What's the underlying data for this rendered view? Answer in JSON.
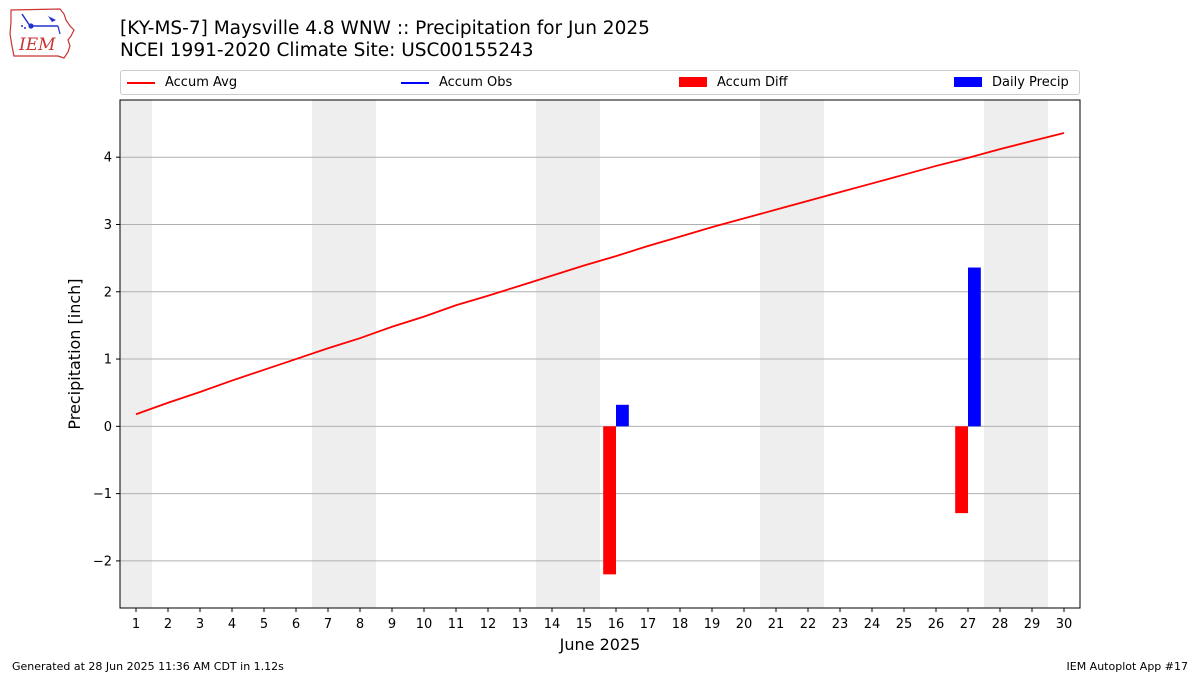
{
  "header": {
    "title_line1": "[KY-MS-7] Maysville 4.8 WNW :: Precipitation for Jun 2025",
    "title_line2": "NCEI 1991-2020 Climate Site: USC00155243",
    "logo_text": "IEM",
    "logo_icon": "iowa-state-outline-weather-icon"
  },
  "footer": {
    "left": "Generated at 28 Jun 2025 11:36 AM CDT in 1.12s",
    "right": "IEM Autoplot App #17"
  },
  "legend": {
    "placement": "top, above plot, horizontal",
    "items": [
      {
        "label": "Accum Avg",
        "kind": "line",
        "color": "#ff0000"
      },
      {
        "label": "Accum Obs",
        "kind": "line",
        "color": "#0000ff"
      },
      {
        "label": "Accum Diff",
        "kind": "patch",
        "color": "#ff0000"
      },
      {
        "label": "Daily Precip",
        "kind": "patch",
        "color": "#0000ff"
      }
    ]
  },
  "chart_data": {
    "type": "bar",
    "xlabel": "June 2025",
    "ylabel": "Precipitation [inch]",
    "xlim": [
      0.5,
      30.5
    ],
    "ylim": [
      -2.7,
      4.85
    ],
    "yticks": [
      -2,
      -1,
      0,
      1,
      2,
      3,
      4
    ],
    "ytick_labels": [
      "−2",
      "−1",
      "0",
      "1",
      "2",
      "3",
      "4"
    ],
    "xticks": [
      1,
      2,
      3,
      4,
      5,
      6,
      7,
      8,
      9,
      10,
      11,
      12,
      13,
      14,
      15,
      16,
      17,
      18,
      19,
      20,
      21,
      22,
      23,
      24,
      25,
      26,
      27,
      28,
      29,
      30
    ],
    "grid": "horizontal",
    "weekend_shading": {
      "color": "#eeeeee",
      "ranges": [
        [
          0.5,
          1.5
        ],
        [
          6.5,
          8.5
        ],
        [
          13.5,
          15.5
        ],
        [
          20.5,
          22.5
        ],
        [
          27.5,
          29.5
        ]
      ]
    },
    "series": [
      {
        "name": "Accum Avg",
        "type": "line",
        "color": "#ff0000",
        "x": [
          1,
          2,
          3,
          4,
          5,
          6,
          7,
          8,
          9,
          10,
          11,
          12,
          13,
          14,
          15,
          16,
          17,
          18,
          19,
          20,
          21,
          22,
          23,
          24,
          25,
          26,
          27,
          28,
          29,
          30
        ],
        "values": [
          0.18,
          0.35,
          0.51,
          0.68,
          0.84,
          1.0,
          1.16,
          1.31,
          1.48,
          1.63,
          1.8,
          1.94,
          2.09,
          2.24,
          2.39,
          2.53,
          2.68,
          2.82,
          2.96,
          3.09,
          3.22,
          3.35,
          3.48,
          3.61,
          3.74,
          3.87,
          3.99,
          4.12,
          4.24,
          4.36
        ]
      },
      {
        "name": "Accum Obs",
        "type": "line",
        "color": "#0000ff",
        "x": [],
        "values": []
      },
      {
        "name": "Accum Diff",
        "type": "bar",
        "color": "#ff0000",
        "offset": -0.2,
        "x": [
          16,
          27
        ],
        "values": [
          -2.2,
          -1.29
        ]
      },
      {
        "name": "Daily Precip",
        "type": "bar",
        "color": "#0000ff",
        "offset": 0.2,
        "x": [
          16,
          27
        ],
        "values": [
          0.32,
          2.36
        ]
      }
    ]
  }
}
